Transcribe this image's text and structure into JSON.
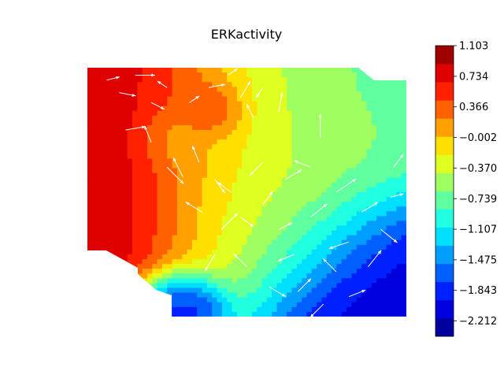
{
  "chart_data": {
    "type": "contour-quiver",
    "title": "ERKactivity",
    "colormap": "jet",
    "levels": 16,
    "colorbar": {
      "min": -2.396,
      "max": 1.103,
      "tick_labels": [
        "1.103",
        "0.734",
        "0.366",
        "−0.002",
        "−0.370",
        "−0.739",
        "−1.107",
        "−1.475",
        "−1.843",
        "−2.212"
      ],
      "tick_values": [
        1.103,
        0.734,
        0.366,
        -0.002,
        -0.37,
        -0.739,
        -1.107,
        -1.475,
        -1.843,
        -2.212
      ],
      "location": "right"
    },
    "field": {
      "description_free": true,
      "x_range": [
        0,
        1
      ],
      "y_range": [
        0,
        1
      ],
      "sources": [
        {
          "x": 0.05,
          "y": 0.55,
          "value": 0.95,
          "spread": 0.3
        },
        {
          "x": 0.3,
          "y": 0.7,
          "value": -0.1,
          "spread": 0.07
        },
        {
          "x": 0.38,
          "y": 0.82,
          "value": 0.8,
          "spread": 0.06
        },
        {
          "x": 0.62,
          "y": 0.65,
          "value": -0.45,
          "spread": 0.25
        },
        {
          "x": 0.9,
          "y": 0.15,
          "value": -2.2,
          "spread": 0.22
        },
        {
          "x": 0.3,
          "y": 0.05,
          "value": -2.35,
          "spread": 0.08
        },
        {
          "x": 0.9,
          "y": 0.85,
          "value": -0.75,
          "spread": 0.18
        },
        {
          "x": 0.55,
          "y": 0.4,
          "value": -0.5,
          "spread": 0.2
        }
      ],
      "mask_removed_corners": [
        {
          "corner": "bottom-left"
        },
        {
          "corner": "top-right"
        }
      ]
    },
    "quiver": [
      {
        "x": 0.06,
        "y": 0.95,
        "u": 0.04,
        "v": 0.01
      },
      {
        "x": 0.1,
        "y": 0.9,
        "u": 0.05,
        "v": -0.01
      },
      {
        "x": 0.15,
        "y": 0.97,
        "u": 0.06,
        "v": 0.0
      },
      {
        "x": 0.2,
        "y": 0.86,
        "u": 0.04,
        "v": -0.02
      },
      {
        "x": 0.25,
        "y": 0.92,
        "u": -0.03,
        "v": 0.02
      },
      {
        "x": 0.32,
        "y": 0.86,
        "u": 0.03,
        "v": 0.02
      },
      {
        "x": 0.38,
        "y": 0.92,
        "u": 0.05,
        "v": 0.01
      },
      {
        "x": 0.44,
        "y": 0.97,
        "u": 0.03,
        "v": 0.02
      },
      {
        "x": 0.48,
        "y": 0.88,
        "u": 0.03,
        "v": 0.05
      },
      {
        "x": 0.52,
        "y": 0.8,
        "u": -0.02,
        "v": 0.04
      },
      {
        "x": 0.55,
        "y": 0.92,
        "u": -0.02,
        "v": -0.03
      },
      {
        "x": 0.6,
        "y": 0.82,
        "u": 0.01,
        "v": 0.06
      },
      {
        "x": 0.12,
        "y": 0.75,
        "u": 0.06,
        "v": 0.01
      },
      {
        "x": 0.2,
        "y": 0.7,
        "u": -0.02,
        "v": 0.05
      },
      {
        "x": 0.25,
        "y": 0.6,
        "u": 0.05,
        "v": -0.05
      },
      {
        "x": 0.3,
        "y": 0.56,
        "u": -0.03,
        "v": 0.06
      },
      {
        "x": 0.35,
        "y": 0.62,
        "u": -0.02,
        "v": 0.05
      },
      {
        "x": 0.4,
        "y": 0.55,
        "u": 0.03,
        "v": -0.04
      },
      {
        "x": 0.45,
        "y": 0.5,
        "u": -0.04,
        "v": 0.03
      },
      {
        "x": 0.48,
        "y": 0.4,
        "u": 0.04,
        "v": -0.03
      },
      {
        "x": 0.55,
        "y": 0.45,
        "u": 0.03,
        "v": 0.04
      },
      {
        "x": 0.6,
        "y": 0.35,
        "u": 0.04,
        "v": 0.02
      },
      {
        "x": 0.65,
        "y": 0.25,
        "u": -0.05,
        "v": -0.02
      },
      {
        "x": 0.7,
        "y": 0.4,
        "u": 0.05,
        "v": 0.04
      },
      {
        "x": 0.7,
        "y": 0.6,
        "u": -0.05,
        "v": 0.02
      },
      {
        "x": 0.73,
        "y": 0.72,
        "u": 0.0,
        "v": 0.07
      },
      {
        "x": 0.78,
        "y": 0.5,
        "u": 0.06,
        "v": 0.04
      },
      {
        "x": 0.82,
        "y": 0.3,
        "u": -0.06,
        "v": -0.02
      },
      {
        "x": 0.86,
        "y": 0.42,
        "u": 0.05,
        "v": 0.03
      },
      {
        "x": 0.88,
        "y": 0.2,
        "u": 0.04,
        "v": 0.05
      },
      {
        "x": 0.92,
        "y": 0.35,
        "u": 0.05,
        "v": -0.04
      },
      {
        "x": 0.95,
        "y": 0.48,
        "u": 0.04,
        "v": 0.01
      },
      {
        "x": 0.96,
        "y": 0.6,
        "u": 0.03,
        "v": 0.04
      },
      {
        "x": 0.4,
        "y": 0.25,
        "u": -0.03,
        "v": -0.05
      },
      {
        "x": 0.5,
        "y": 0.2,
        "u": -0.04,
        "v": 0.04
      },
      {
        "x": 0.57,
        "y": 0.12,
        "u": 0.05,
        "v": -0.03
      },
      {
        "x": 0.66,
        "y": 0.1,
        "u": 0.04,
        "v": 0.04
      },
      {
        "x": 0.74,
        "y": 0.05,
        "u": -0.04,
        "v": -0.04
      },
      {
        "x": 0.82,
        "y": 0.08,
        "u": 0.05,
        "v": 0.02
      },
      {
        "x": 0.78,
        "y": 0.18,
        "u": -0.04,
        "v": 0.04
      },
      {
        "x": 0.62,
        "y": 0.55,
        "u": 0.05,
        "v": 0.03
      },
      {
        "x": 0.55,
        "y": 0.62,
        "u": -0.04,
        "v": -0.04
      },
      {
        "x": 0.42,
        "y": 0.35,
        "u": 0.05,
        "v": 0.05
      },
      {
        "x": 0.36,
        "y": 0.42,
        "u": -0.05,
        "v": 0.03
      }
    ]
  }
}
